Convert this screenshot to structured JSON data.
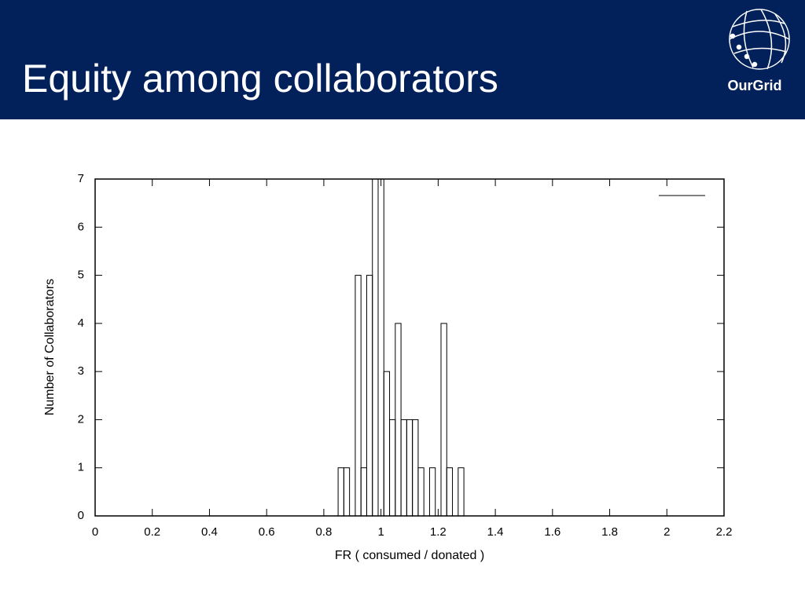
{
  "header": {
    "title": "Equity among collaborators",
    "logo": "OurGrid"
  },
  "chart_data": {
    "type": "histogram",
    "xlabel": "FR ( consumed / donated )",
    "ylabel": "Number of Collaborators",
    "bins": [
      0.85,
      0.87,
      0.89,
      0.91,
      0.93,
      0.95,
      0.97,
      0.99,
      1.01,
      1.03,
      1.05,
      1.07,
      1.09,
      1.11,
      1.13,
      1.15,
      1.17,
      1.19,
      1.21,
      1.23,
      1.25,
      1.27,
      1.29
    ],
    "values": [
      1,
      1,
      0,
      5,
      1,
      5,
      7,
      7,
      3,
      2,
      4,
      2,
      2,
      2,
      1,
      0,
      1,
      0,
      4,
      1,
      0,
      1
    ],
    "color": "#000000",
    "xlim": [
      0,
      2.2
    ],
    "xticks": [
      0,
      0.2,
      0.4,
      0.6,
      0.8,
      1,
      1.2,
      1.4,
      1.6,
      1.8,
      2,
      2.2
    ],
    "ylim": [
      0,
      7
    ],
    "yticks": [
      0,
      1,
      2,
      3,
      4,
      5,
      6,
      7
    ],
    "grid": false
  }
}
